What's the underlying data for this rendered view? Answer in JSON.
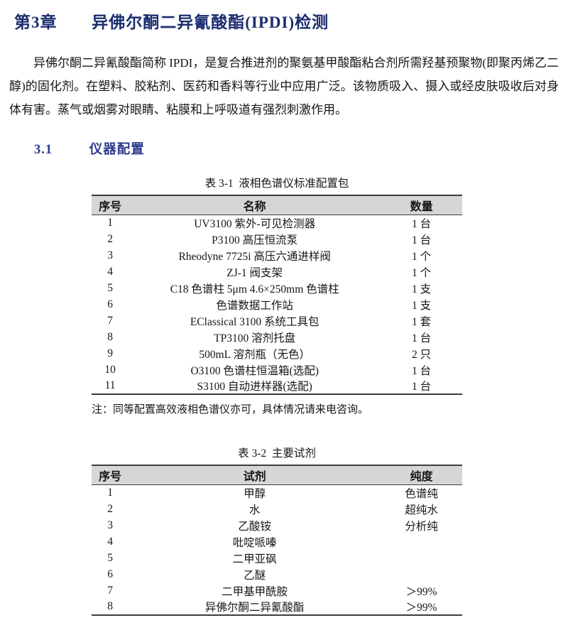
{
  "chapter": {
    "number": "第3章",
    "title": "异佛尔酮二异氰酸酯(IPDI)检测"
  },
  "intro": {
    "text": "异佛尔酮二异氰酸酯简称 IPDI，是复合推进剂的聚氨基甲酸酯粘合剂所需羟基预聚物(即聚丙烯乙二醇)的固化剂。在塑料、胶粘剂、医药和香料等行业中应用广泛。该物质吸入、摄入或经皮肤吸收后对身体有害。蒸气或烟雾对眼睛、粘膜和上呼吸道有强烈刺激作用。"
  },
  "section": {
    "number": "3.1",
    "title": "仪器配置"
  },
  "table1": {
    "caption": "表 3-1  液相色谱仪标准配置包",
    "headers": [
      "序号",
      "名称",
      "数量"
    ],
    "rows": [
      [
        "1",
        "UV3100 紫外-可见检测器",
        "1 台"
      ],
      [
        "2",
        "P3100 高压恒流泵",
        "1 台"
      ],
      [
        "3",
        "Rheodyne 7725i  高压六通进样阀",
        "1 个"
      ],
      [
        "4",
        "ZJ-1 阀支架",
        "1 个"
      ],
      [
        "5",
        "C18 色谱柱  5μm 4.6×250mm 色谱柱",
        "1 支"
      ],
      [
        "6",
        "色谱数据工作站",
        "1 支"
      ],
      [
        "7",
        "EClassical 3100 系统工具包",
        "1 套"
      ],
      [
        "8",
        "TP3100 溶剂托盘",
        "1 台"
      ],
      [
        "9",
        "500mL 溶剂瓶（无色）",
        "2 只"
      ],
      [
        "10",
        "O3100 色谱柱恒温箱(选配)",
        "1 台"
      ],
      [
        "11",
        "S3100 自动进样器(选配)",
        "1 台"
      ]
    ],
    "note": "注：同等配置高效液相色谱仪亦可，具体情况请来电咨询。"
  },
  "table2": {
    "caption": "表 3-2  主要试剂",
    "headers": [
      "序号",
      "试剂",
      "纯度"
    ],
    "rows": [
      [
        "1",
        "甲醇",
        "色谱纯"
      ],
      [
        "2",
        "水",
        "超纯水"
      ],
      [
        "3",
        "乙酸铵",
        "分析纯"
      ],
      [
        "4",
        "吡啶哌嗪",
        ""
      ],
      [
        "5",
        "二甲亚砜",
        ""
      ],
      [
        "6",
        "乙醚",
        ""
      ],
      [
        "7",
        "二甲基甲酰胺",
        "＞99%"
      ],
      [
        "8",
        "异佛尔酮二异氰酸酯",
        "＞99%"
      ]
    ]
  },
  "colors": {
    "chapter_title": "#1b2d6e",
    "section_title": "#2c3a8c",
    "table_header_bg": "#d6d6d6",
    "table_border": "#3c3c3c"
  }
}
